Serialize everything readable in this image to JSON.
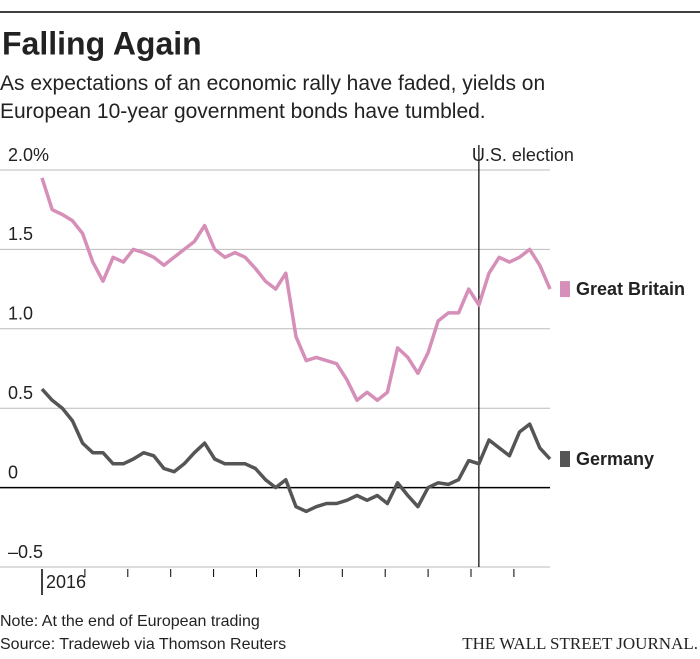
{
  "chart_data": {
    "type": "line",
    "title": "Falling Again",
    "subtitle": "As expectations of an economic rally have faded, yields on European 10-year government bonds have tumbled.",
    "categories": [
      "2016",
      null,
      null,
      null,
      null,
      null,
      null,
      null,
      null,
      null,
      null,
      null,
      null,
      null,
      null,
      null,
      null,
      null,
      null,
      null,
      null,
      null,
      null,
      null,
      null,
      null,
      null,
      null,
      null,
      null,
      null,
      null,
      null,
      null,
      null,
      null,
      null,
      null,
      null,
      null,
      null,
      null,
      null,
      null,
      null,
      null,
      null,
      null,
      null,
      null,
      null
    ],
    "series": [
      {
        "name": "Great Britain",
        "color": "#d68fb8",
        "values": [
          1.95,
          1.75,
          1.72,
          1.68,
          1.6,
          1.42,
          1.3,
          1.45,
          1.42,
          1.5,
          1.48,
          1.45,
          1.4,
          1.45,
          1.5,
          1.55,
          1.65,
          1.5,
          1.45,
          1.48,
          1.45,
          1.38,
          1.3,
          1.25,
          1.35,
          0.95,
          0.8,
          0.82,
          0.8,
          0.78,
          0.68,
          0.55,
          0.6,
          0.55,
          0.6,
          0.88,
          0.82,
          0.72,
          0.85,
          1.05,
          1.1,
          1.1,
          1.25,
          1.15,
          1.35,
          1.45,
          1.42,
          1.45,
          1.5,
          1.4,
          1.25
        ]
      },
      {
        "name": "Germany",
        "color": "#555555",
        "values": [
          0.62,
          0.55,
          0.5,
          0.42,
          0.28,
          0.22,
          0.22,
          0.15,
          0.15,
          0.18,
          0.22,
          0.2,
          0.12,
          0.1,
          0.15,
          0.22,
          0.28,
          0.18,
          0.15,
          0.15,
          0.15,
          0.12,
          0.05,
          0.0,
          0.05,
          -0.12,
          -0.15,
          -0.12,
          -0.1,
          -0.1,
          -0.08,
          -0.05,
          -0.08,
          -0.05,
          -0.1,
          0.03,
          -0.05,
          -0.12,
          0.0,
          0.03,
          0.02,
          0.05,
          0.17,
          0.15,
          0.3,
          0.25,
          0.2,
          0.35,
          0.4,
          0.25,
          0.18
        ]
      }
    ],
    "ylim": [
      -0.5,
      2.0
    ],
    "yticks": [
      {
        "value": 2,
        "label": "2.0%"
      },
      1.5,
      {
        "value": 1,
        "label": "1.0"
      },
      0.5,
      0,
      {
        "value": -0.5,
        "label": "–0.5"
      }
    ],
    "grid": true,
    "annotations": [
      {
        "label": "U.S. election",
        "x": 43
      }
    ],
    "note": "Note: At the end of European trading",
    "source": "Source: Tradeweb via Thomson Reuters",
    "publisher": "THE WALL STREET JOURNAL."
  }
}
